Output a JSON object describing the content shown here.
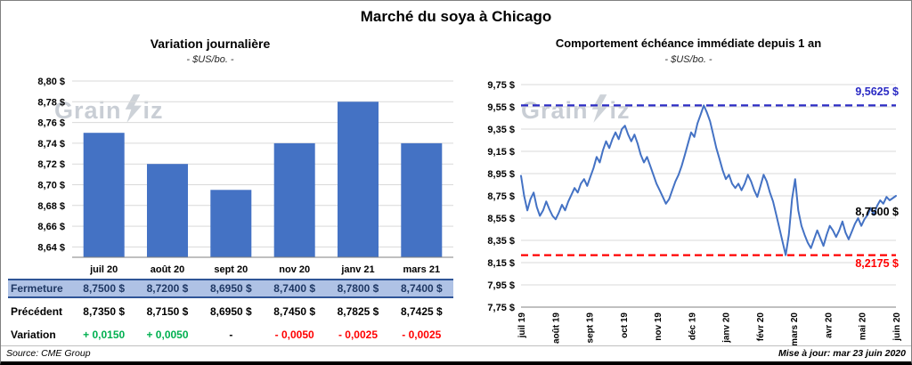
{
  "page": {
    "title": "Marché du soya à Chicago",
    "watermark": {
      "full": "GrainWiz",
      "prefix": "Grain",
      "suffix": "iz"
    },
    "footer": {
      "source": "Source: CME Group",
      "updated": "Mise à jour: mar 23 juin 2020"
    }
  },
  "colors": {
    "bar": "#4472C4",
    "line": "#4472C4",
    "grid": "#D9D9D9",
    "axis": "#808080",
    "max_line": "#2B2BC4",
    "min_line": "#FF0000",
    "positive": "#00B050",
    "negative": "#FF0000",
    "highlight_row_bg": "#AFC2E5",
    "highlight_row_border": "#2F5597",
    "highlight_row_text": "#1F3864"
  },
  "chart_data": [
    {
      "type": "bar",
      "title": "Variation journalière",
      "subtitle": "- $US/bo. -",
      "categories": [
        "juil 20",
        "août 20",
        "sept 20",
        "nov 20",
        "janv 21",
        "mars 21"
      ],
      "values": [
        8.75,
        8.72,
        8.695,
        8.74,
        8.78,
        8.74
      ],
      "ylim": [
        8.63,
        8.8
      ],
      "yticks": [
        8.8,
        8.78,
        8.76,
        8.74,
        8.72,
        8.7,
        8.68,
        8.66,
        8.64
      ],
      "ytick_labels": [
        "8,80 $",
        "8,78 $",
        "8,76 $",
        "8,74 $",
        "8,72 $",
        "8,70 $",
        "8,68 $",
        "8,66 $",
        "8,64 $"
      ],
      "grid": true,
      "legend": "none"
    },
    {
      "type": "line",
      "title": "Comportement échéance immédiate depuis 1 an",
      "subtitle": "- $US/bo. -",
      "x_labels": [
        "juil 19",
        "août 19",
        "sept 19",
        "oct 19",
        "nov 19",
        "déc 19",
        "janv 20",
        "févr 20",
        "mars 20",
        "avr 20",
        "mai 20",
        "juin 20"
      ],
      "ylim": [
        7.75,
        9.75
      ],
      "yticks": [
        9.75,
        9.55,
        9.35,
        9.15,
        8.95,
        8.75,
        8.55,
        8.35,
        8.15,
        7.95,
        7.75
      ],
      "ytick_labels": [
        "9,75 $",
        "9,55 $",
        "9,35 $",
        "9,15 $",
        "8,95 $",
        "8,75 $",
        "8,55 $",
        "8,35 $",
        "8,15 $",
        "7,95 $",
        "7,75 $"
      ],
      "grid": true,
      "legend": "none",
      "annotations": [
        {
          "label": "9,5625 $",
          "value": 9.5625,
          "line": true,
          "color": "#2B2BC4"
        },
        {
          "label": "8,7500 $",
          "value": 8.75,
          "line": false,
          "color": "#000000"
        },
        {
          "label": "8,2175 $",
          "value": 8.2175,
          "line": true,
          "color": "#FF0000"
        }
      ],
      "values": [
        8.93,
        8.75,
        8.62,
        8.72,
        8.78,
        8.65,
        8.57,
        8.62,
        8.7,
        8.63,
        8.57,
        8.54,
        8.6,
        8.67,
        8.62,
        8.7,
        8.76,
        8.82,
        8.78,
        8.86,
        8.9,
        8.84,
        8.92,
        9.0,
        9.1,
        9.05,
        9.16,
        9.24,
        9.18,
        9.26,
        9.32,
        9.26,
        9.35,
        9.38,
        9.3,
        9.24,
        9.3,
        9.22,
        9.12,
        9.05,
        9.1,
        9.02,
        8.94,
        8.86,
        8.8,
        8.74,
        8.68,
        8.72,
        8.8,
        8.88,
        8.94,
        9.02,
        9.12,
        9.22,
        9.32,
        9.28,
        9.4,
        9.48,
        9.5625,
        9.5,
        9.42,
        9.3,
        9.18,
        9.08,
        8.98,
        8.9,
        8.94,
        8.86,
        8.82,
        8.86,
        8.8,
        8.86,
        8.94,
        8.88,
        8.8,
        8.74,
        8.84,
        8.94,
        8.88,
        8.78,
        8.7,
        8.58,
        8.46,
        8.34,
        8.2175,
        8.4,
        8.72,
        8.9,
        8.62,
        8.48,
        8.4,
        8.33,
        8.28,
        8.36,
        8.44,
        8.37,
        8.3,
        8.4,
        8.48,
        8.44,
        8.38,
        8.44,
        8.52,
        8.42,
        8.36,
        8.43,
        8.5,
        8.55,
        8.48,
        8.54,
        8.58,
        8.64,
        8.58,
        8.66,
        8.71,
        8.68,
        8.74,
        8.71,
        8.73,
        8.75
      ]
    }
  ],
  "table": {
    "rows": [
      {
        "label": "Fermeture",
        "values": [
          "8,7500 $",
          "8,7200 $",
          "8,6950 $",
          "8,7400 $",
          "8,7800 $",
          "8,7400 $"
        ]
      },
      {
        "label": "Précédent",
        "values": [
          "8,7350 $",
          "8,7150 $",
          "8,6950 $",
          "8,7450 $",
          "8,7825 $",
          "8,7425 $"
        ]
      },
      {
        "label": "Variation",
        "values": [
          "+ 0,0150",
          "+ 0,0050",
          "-",
          "- 0,0050",
          "- 0,0025",
          "- 0,0025"
        ]
      }
    ]
  }
}
